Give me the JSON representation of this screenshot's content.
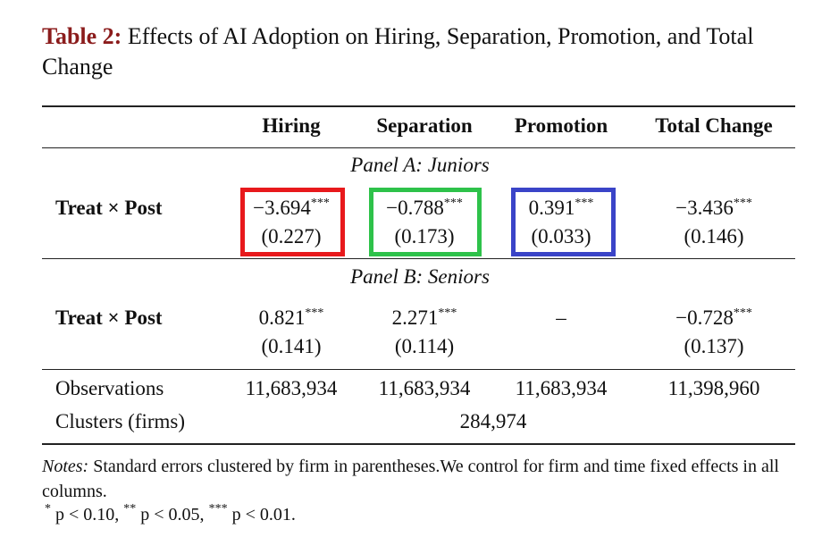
{
  "title": {
    "label": "Table 2:",
    "text": "Effects of AI Adoption on Hiring, Separation, Promotion, and Total Change"
  },
  "table": {
    "columns": [
      "Hiring",
      "Separation",
      "Promotion",
      "Total Change"
    ],
    "panels": [
      {
        "title": "Panel A: Juniors",
        "row_label": "Treat × Post",
        "cells": [
          {
            "value": "−3.694",
            "stars": "***",
            "se": "(0.227)"
          },
          {
            "value": "−0.788",
            "stars": "***",
            "se": "(0.173)"
          },
          {
            "value": "0.391",
            "stars": "***",
            "se": "(0.033)"
          },
          {
            "value": "−3.436",
            "stars": "***",
            "se": "(0.146)"
          }
        ]
      },
      {
        "title": "Panel B: Seniors",
        "row_label": "Treat × Post",
        "cells": [
          {
            "value": "0.821",
            "stars": "***",
            "se": "(0.141)"
          },
          {
            "value": "2.271",
            "stars": "***",
            "se": "(0.114)"
          },
          {
            "value": "–"
          },
          {
            "value": "−0.728",
            "stars": "***",
            "se": "(0.137)"
          }
        ]
      }
    ],
    "observations": {
      "label": "Observations",
      "values": [
        "11,683,934",
        "11,683,934",
        "11,683,934",
        "11,398,960"
      ]
    },
    "clusters": {
      "label": "Clusters (firms)",
      "value": "284,974"
    }
  },
  "notes": {
    "label": "Notes:",
    "text": "Standard errors clustered by firm in parentheses.We control for firm and time fixed effects in all columns.",
    "significance": [
      {
        "stars": "*",
        "text": "p < 0.10,"
      },
      {
        "stars": "**",
        "text": "p < 0.05,"
      },
      {
        "stars": "***",
        "text": "p < 0.01."
      }
    ]
  }
}
